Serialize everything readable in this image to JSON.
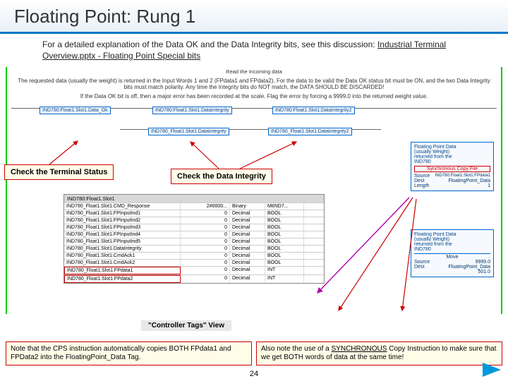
{
  "title": "Floating Point: Rung 1",
  "intro_text": "For a detailed explanation of the  Data OK and the Data Integrity bits, see this discussion: ",
  "intro_link": "Industrial Terminal Overview.pptx - Floating Point Special bits",
  "diag_header": "Read the Incoming data",
  "diag_para1": "The requested data (usually the weight) is returned in the Input Words 1 and 2 (FPdata1 and FPdata2). For the data to be valid the Data OK status bit must be ON, and the two Data Integrity bits must match polarity. Any time the Integrity bits do NOT match, the DATA SHOULD BE DISCARDED!",
  "diag_para2": "If the Data OK bit is off, then a major error has been recorded at the scale. Flag the error by forcing a 9999.0 into the returned weight value.",
  "rung_tags": [
    "IND780:Float1.Slot1.Data_Ok",
    "IND780:Float1.Slot1.DataIntegrity",
    "IND780:Float1.Slot1:DataIntegrity2"
  ],
  "rung2_tags": [
    "IND780_Float1.Slot1.DataIntegrity",
    "IND780_Float1.Slot1:DataIntegrity2"
  ],
  "callouts": {
    "terminal": "Check the Terminal Status",
    "integrity": "Check the Data Integrity"
  },
  "side_top": {
    "title": " Floating Point Data",
    "lines": [
      "(usually Weight)",
      "returned from the",
      "IND780"
    ],
    "cps_label": "Synchronous Copy File",
    "src_lbl": "Source",
    "src_val": "IND780:Float1.Slot1:FPdata1",
    "dst_lbl": "Dest",
    "dst_val": "FloatingPoint_Data",
    "len_lbl": "Length",
    "len_val": "1"
  },
  "side_bot": {
    "title": "Floating Point Data",
    "lines": [
      "(usually Weight)",
      "returned from the",
      "IND780"
    ],
    "mov_label": "Move",
    "src_lbl": "Source",
    "src_val": "9999.0",
    "dst_lbl": "Dest",
    "dst_val": "FloatingPoint_Data",
    "dst_val2": "501.0"
  },
  "tag_table": {
    "header": "IND780:Float1.Slot1",
    "rows": [
      {
        "n": "IND780_Float1.Slot1.CMD_Response",
        "v": "2#0000...",
        "f": "Binary",
        "t": "MtIND7..."
      },
      {
        "n": "IND780_Float1.Slot1.FPInputInd1",
        "v": "0",
        "f": "Decimal",
        "t": "BOOL"
      },
      {
        "n": "IND780_Float1.Slot1.FPInputInd2",
        "v": "0",
        "f": "Decimal",
        "t": "BOOL"
      },
      {
        "n": "IND780_Float1.Slot1.FPInputInd3",
        "v": "0",
        "f": "Decimal",
        "t": "BOOL"
      },
      {
        "n": "IND780_Float1.Slot1.FPInputInd4",
        "v": "0",
        "f": "Decimal",
        "t": "BOOL"
      },
      {
        "n": "IND780_Float1.Slot1.FPInputInd5",
        "v": "0",
        "f": "Decimal",
        "t": "BOOL"
      },
      {
        "n": "IND780_Float1.Slot1.DataIntegrity",
        "v": "0",
        "f": "Decimal",
        "t": "BOOL"
      },
      {
        "n": "IND780_Float1.Slot1.CmdAck1",
        "v": "0",
        "f": "Decimal",
        "t": "BOOL"
      },
      {
        "n": "IND780_Float1.Slot1.CmdAck2",
        "v": "0",
        "f": "Decimal",
        "t": "BOOL"
      },
      {
        "n": "IND780_Float1.Slot1.FPdata1",
        "v": "0",
        "f": "Decimal",
        "t": "INT",
        "hl": true
      },
      {
        "n": "IND780_Float1.Slot1.FPdata2",
        "v": "0",
        "f": "Decimal",
        "t": "INT",
        "hl": true
      }
    ]
  },
  "controller_view_label": "\"Controller Tags\" View",
  "bottom_notes": {
    "left": "Note that the CPS instruction automatically copies BOTH FPdata1 and FPData2 into the FloatingPoint_Data Tag.",
    "right_a": "Also note the use of a ",
    "right_b": "SYNCHRONOUS",
    "right_c": " Copy Instruction to make sure that we get BOTH words of data at the same time!"
  },
  "page_number": "24",
  "colors": {
    "accent": "#0078c8",
    "callout_bg": "#fffde8",
    "callout_border": "#c00",
    "rail": "#0c0"
  }
}
